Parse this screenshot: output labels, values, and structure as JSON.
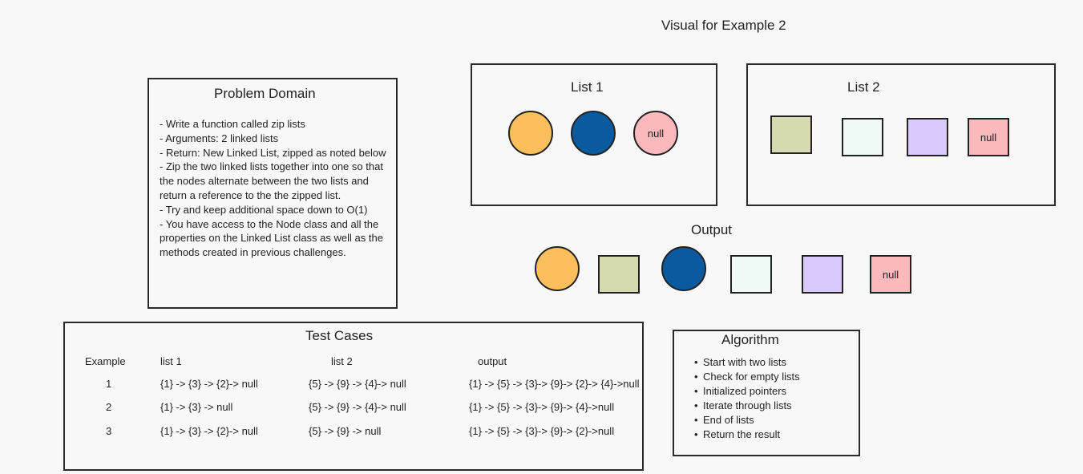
{
  "page_title": "Visual for Example 2",
  "colors": {
    "orange": "#fdbe5d",
    "blue": "#0a5aa0",
    "pink": "#fbb8bd",
    "olive": "#d7d9b1",
    "mint": "#f0fbf8",
    "lavender": "#d9c9fd"
  },
  "list1": {
    "title": "List 1",
    "nodes": [
      {
        "shape": "circle",
        "color": "orange",
        "label": ""
      },
      {
        "shape": "circle",
        "color": "blue",
        "label": ""
      },
      {
        "shape": "circle",
        "color": "pink",
        "label": "null"
      }
    ]
  },
  "list2": {
    "title": "List 2",
    "nodes": [
      {
        "shape": "square",
        "color": "olive",
        "label": ""
      },
      {
        "shape": "square",
        "color": "mint",
        "label": ""
      },
      {
        "shape": "square",
        "color": "lavender",
        "label": ""
      },
      {
        "shape": "square",
        "color": "pink",
        "label": "null"
      }
    ]
  },
  "output": {
    "title": "Output",
    "nodes": [
      {
        "shape": "circle",
        "color": "orange",
        "label": ""
      },
      {
        "shape": "square",
        "color": "olive",
        "label": ""
      },
      {
        "shape": "circle",
        "color": "blue",
        "label": ""
      },
      {
        "shape": "square",
        "color": "mint",
        "label": ""
      },
      {
        "shape": "square",
        "color": "lavender",
        "label": ""
      },
      {
        "shape": "square",
        "color": "pink",
        "label": "null"
      }
    ]
  },
  "problem_domain": {
    "title": "Problem Domain",
    "lines": [
      "- Write a function called zip lists",
      "- Arguments: 2 linked lists",
      "- Return: New Linked List, zipped as noted below",
      "- Zip the two linked lists together into one so that the nodes alternate between the two lists and return a reference to the the zipped list.",
      "- Try and keep additional space down to O(1)",
      "- You have access to the Node class and all the properties on the Linked List class as well as the methods created in previous challenges."
    ]
  },
  "test_cases": {
    "title": "Test Cases",
    "headers": [
      "Example",
      "list 1",
      "list 2",
      "output"
    ],
    "rows": [
      [
        "1",
        "{1} -> {3} -> {2}-> null",
        "{5} -> {9} -> {4}-> null",
        "{1} -> {5} -> {3}-> {9}-> {2}-> {4}->null"
      ],
      [
        "2",
        "{1} -> {3} -> null",
        "{5} -> {9} -> {4}-> null",
        "{1} -> {5} -> {3}-> {9}-> {4}->null"
      ],
      [
        "3",
        "{1} -> {3} -> {2}-> null",
        "{5} -> {9} -> null",
        "{1} -> {5} -> {3}-> {9}-> {2}->null"
      ]
    ]
  },
  "algorithm": {
    "title": "Algorithm",
    "steps": [
      "Start with two lists",
      "Check for empty lists",
      "Initialized pointers",
      "Iterate through lists",
      "End of lists",
      "Return the result"
    ]
  }
}
